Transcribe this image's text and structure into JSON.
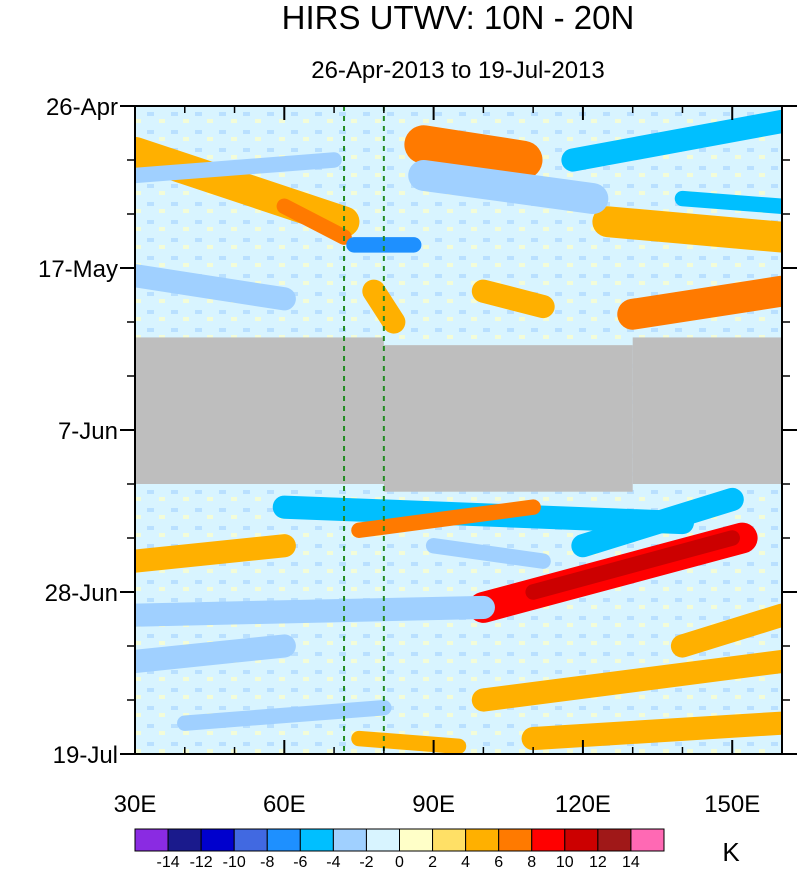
{
  "chart_data": {
    "type": "heatmap",
    "title": "HIRS UTWV: 10N - 20N",
    "subtitle": "26-Apr-2013 to 19-Jul-2013",
    "x_axis": {
      "range": [
        30,
        160
      ],
      "ticks": [
        30,
        60,
        90,
        120,
        150
      ],
      "tick_labels": [
        "30E",
        "60E",
        "90E",
        "120E",
        "150E"
      ]
    },
    "y_axis": {
      "range_days": [
        0,
        84
      ],
      "ticks": [
        0,
        21,
        42,
        63,
        84
      ],
      "tick_labels": [
        "26-Apr",
        "17-May",
        "7-Jun",
        "28-Jun",
        "19-Jul"
      ]
    },
    "units": "K",
    "colorbar": {
      "levels": [
        -14,
        -12,
        -10,
        -8,
        -6,
        -4,
        -2,
        0,
        2,
        4,
        6,
        8,
        10,
        12,
        14
      ],
      "labels": [
        "-14",
        "-12",
        "-10",
        "-8",
        "-6",
        "-4",
        "-2",
        "0",
        "2",
        "4",
        "6",
        "8",
        "10",
        "12",
        "14"
      ],
      "colors": [
        "#8a2be2",
        "#1a1a8c",
        "#0000cd",
        "#4169e1",
        "#1e90ff",
        "#00bfff",
        "#a0d0ff",
        "#d8f4ff",
        "#ffffc8",
        "#ffe066",
        "#ffb000",
        "#ff7a00",
        "#ff0000",
        "#cc0000",
        "#a01818",
        "#ff69b4"
      ]
    },
    "missing_data_periods": [
      {
        "x_range": [
          30,
          80
        ],
        "day_range": [
          30.0,
          49.0
        ]
      },
      {
        "x_range": [
          80,
          130
        ],
        "day_range": [
          31.0,
          50.0
        ]
      },
      {
        "x_range": [
          130,
          160
        ],
        "day_range": [
          30.0,
          49.0
        ]
      }
    ],
    "missing_color": "#bebebe",
    "reference_lines": [
      {
        "x": 72,
        "style": "dashed",
        "color": "#228b22"
      },
      {
        "x": 80,
        "style": "dashed",
        "color": "#228b22"
      }
    ],
    "anomaly_bands": [
      {
        "lon0": 30,
        "day0": 6,
        "lon1": 72,
        "day1": 15,
        "value": 5,
        "width": 4
      },
      {
        "lon0": 60,
        "day0": 13,
        "lon1": 72,
        "day1": 17,
        "value": 7,
        "width": 2
      },
      {
        "lon0": 88,
        "day0": 5,
        "lon1": 108,
        "day1": 7,
        "value": 6,
        "width": 5
      },
      {
        "lon0": 125,
        "day0": 15,
        "lon1": 160,
        "day1": 17,
        "value": 4,
        "width": 4
      },
      {
        "lon0": 130,
        "day0": 27,
        "lon1": 160,
        "day1": 24,
        "value": 6,
        "width": 4
      },
      {
        "lon0": 78,
        "day0": 24,
        "lon1": 82,
        "day1": 28,
        "value": 5,
        "width": 3
      },
      {
        "lon0": 100,
        "day0": 24,
        "lon1": 112,
        "day1": 26,
        "value": 5,
        "width": 3
      },
      {
        "lon0": 30,
        "day0": 9,
        "lon1": 70,
        "day1": 7,
        "value": -4,
        "width": 2
      },
      {
        "lon0": 74,
        "day0": 18,
        "lon1": 86,
        "day1": 18,
        "value": -8,
        "width": 2
      },
      {
        "lon0": 118,
        "day0": 7,
        "lon1": 160,
        "day1": 2,
        "value": -5,
        "width": 3
      },
      {
        "lon0": 140,
        "day0": 12,
        "lon1": 160,
        "day1": 13,
        "value": -5,
        "width": 2
      },
      {
        "lon0": 88,
        "day0": 9,
        "lon1": 122,
        "day1": 12,
        "value": -3,
        "width": 4
      },
      {
        "lon0": 30,
        "day0": 22,
        "lon1": 60,
        "day1": 25,
        "value": -4,
        "width": 3
      },
      {
        "lon0": 60,
        "day0": 52,
        "lon1": 140,
        "day1": 54,
        "value": -5,
        "width": 3
      },
      {
        "lon0": 90,
        "day0": 57,
        "lon1": 112,
        "day1": 59,
        "value": -4,
        "width": 2
      },
      {
        "lon0": 120,
        "day0": 57,
        "lon1": 150,
        "day1": 51,
        "value": -5,
        "width": 3
      },
      {
        "lon0": 30,
        "day0": 59,
        "lon1": 60,
        "day1": 57,
        "value": 5,
        "width": 3
      },
      {
        "lon0": 100,
        "day0": 65,
        "lon1": 152,
        "day1": 56,
        "value": 8,
        "width": 4
      },
      {
        "lon0": 110,
        "day0": 63,
        "lon1": 150,
        "day1": 56,
        "value": 10,
        "width": 2
      },
      {
        "lon0": 75,
        "day0": 55,
        "lon1": 110,
        "day1": 52,
        "value": 6,
        "width": 2
      },
      {
        "lon0": 30,
        "day0": 66,
        "lon1": 100,
        "day1": 65,
        "value": -4,
        "width": 3
      },
      {
        "lon0": 30,
        "day0": 72,
        "lon1": 60,
        "day1": 70,
        "value": -4,
        "width": 3
      },
      {
        "lon0": 40,
        "day0": 80,
        "lon1": 80,
        "day1": 78,
        "value": -4,
        "width": 2
      },
      {
        "lon0": 100,
        "day0": 77,
        "lon1": 160,
        "day1": 72,
        "value": 5,
        "width": 3
      },
      {
        "lon0": 140,
        "day0": 70,
        "lon1": 160,
        "day1": 66,
        "value": 5,
        "width": 3
      },
      {
        "lon0": 110,
        "day0": 82,
        "lon1": 160,
        "day1": 80,
        "value": 5,
        "width": 3
      },
      {
        "lon0": 75,
        "day0": 82,
        "lon1": 95,
        "day1": 83,
        "value": 4,
        "width": 2
      }
    ]
  }
}
